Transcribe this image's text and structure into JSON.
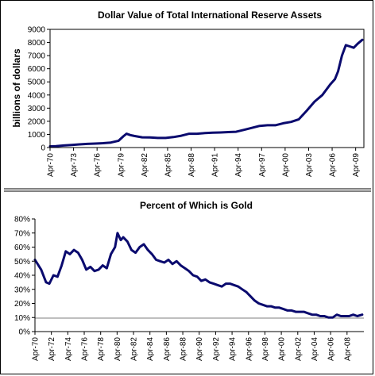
{
  "chart_data": [
    {
      "type": "line",
      "title": "Dollar Value of Total International Reserve Assets",
      "ylabel": "billions of dollars",
      "xlabel": "",
      "ylim": [
        0,
        9000
      ],
      "yticks": [
        0,
        1000,
        2000,
        3000,
        4000,
        5000,
        6000,
        7000,
        8000,
        9000
      ],
      "ytick_labels": [
        "0",
        "1000",
        "2000",
        "3000",
        "4000",
        "5000",
        "6000",
        "7000",
        "8000",
        "9000"
      ],
      "xlim": [
        1970.25,
        2010.3
      ],
      "xticks": [
        1970.25,
        1973.25,
        1976.25,
        1979.25,
        1982.25,
        1985.25,
        1988.25,
        1991.25,
        1994.25,
        1997.25,
        2000.25,
        2003.25,
        2006.25,
        2009.25
      ],
      "xtick_labels": [
        "Apr-70",
        "Apr-73",
        "Apr-76",
        "Apr-79",
        "Apr-82",
        "Apr-85",
        "Apr-88",
        "Apr-91",
        "Apr-94",
        "Apr-97",
        "Apr-00",
        "Apr-03",
        "Apr-06",
        "Apr-09"
      ],
      "grid": "none",
      "legend": "none",
      "series": [
        {
          "color": "#0a0a6e",
          "x": [
            1970.25,
            1971,
            1972,
            1973,
            1974,
            1975,
            1976,
            1977,
            1978,
            1979,
            1979.6,
            1980,
            1980.5,
            1981,
            1982,
            1983,
            1984,
            1985,
            1986,
            1987,
            1988,
            1989,
            1990,
            1991,
            1992,
            1993,
            1994,
            1995,
            1996,
            1997,
            1998,
            1999,
            2000,
            2001,
            2002,
            2003,
            2004,
            2005,
            2006,
            2006.6,
            2007,
            2007.5,
            2008,
            2008.5,
            2009,
            2009.5,
            2010.1
          ],
          "y": [
            90,
            110,
            160,
            200,
            240,
            280,
            300,
            330,
            380,
            520,
            850,
            1050,
            950,
            880,
            780,
            770,
            730,
            730,
            800,
            900,
            1050,
            1050,
            1100,
            1130,
            1150,
            1180,
            1200,
            1350,
            1500,
            1650,
            1700,
            1700,
            1850,
            1950,
            2150,
            2800,
            3500,
            4000,
            4800,
            5200,
            5800,
            7000,
            7800,
            7700,
            7600,
            7900,
            8200
          ]
        }
      ]
    },
    {
      "type": "line",
      "title": "Percent of Which is Gold",
      "xlabel": "",
      "ylabel": "",
      "ylim": [
        0,
        80
      ],
      "yticks": [
        0,
        10,
        20,
        30,
        40,
        50,
        60,
        70,
        80
      ],
      "ytick_labels": [
        "0%",
        "10%",
        "20%",
        "30%",
        "40%",
        "50%",
        "60%",
        "70%",
        "80%"
      ],
      "xlim": [
        1970.25,
        2010.3
      ],
      "xticks": [
        1970.25,
        1972.25,
        1974.25,
        1976.25,
        1978.25,
        1980.25,
        1982.25,
        1984.25,
        1986.25,
        1988.25,
        1990.25,
        1992.25,
        1994.25,
        1996.25,
        1998.25,
        2000.25,
        2002.25,
        2004.25,
        2006.25,
        2008.25
      ],
      "xtick_labels": [
        "Apr-70",
        "Apr-72",
        "Apr-74",
        "Apr-76",
        "Apr-78",
        "Apr-80",
        "Apr-82",
        "Apr-84",
        "Apr-86",
        "Apr-88",
        "Apr-90",
        "Apr-92",
        "Apr-94",
        "Apr-96",
        "Apr-98",
        "Apr-00",
        "Apr-02",
        "Apr-04",
        "Apr-06",
        "Apr-08"
      ],
      "grid": "none",
      "legend": "none",
      "series": [
        {
          "color": "#0a0a6e",
          "x": [
            1970.25,
            1971,
            1971.6,
            1972,
            1972.5,
            1973,
            1973.5,
            1974,
            1974.5,
            1975,
            1975.5,
            1976,
            1976.5,
            1977,
            1977.5,
            1978,
            1978.5,
            1979,
            1979.5,
            1980,
            1980.3,
            1980.7,
            1981,
            1981.5,
            1982,
            1982.5,
            1983,
            1983.5,
            1984,
            1984.5,
            1985,
            1985.5,
            1986,
            1986.5,
            1987,
            1987.5,
            1988,
            1988.5,
            1989,
            1989.5,
            1990,
            1990.5,
            1991,
            1991.5,
            1992,
            1992.5,
            1993,
            1993.5,
            1994,
            1994.5,
            1995,
            1995.5,
            1996,
            1996.5,
            1997,
            1997.5,
            1998,
            1998.5,
            1999,
            1999.5,
            2000,
            2000.5,
            2001,
            2001.5,
            2002,
            2002.5,
            2003,
            2003.5,
            2004,
            2004.5,
            2005,
            2005.5,
            2006,
            2006.5,
            2007,
            2007.5,
            2008,
            2008.5,
            2009,
            2009.5,
            2010.1
          ],
          "y": [
            51,
            44,
            35,
            34,
            40,
            39,
            47,
            57,
            55,
            58,
            56,
            51,
            44,
            46,
            43,
            44,
            47,
            45,
            55,
            60,
            70,
            65,
            67,
            64,
            58,
            56,
            60,
            62,
            58,
            55,
            51,
            50,
            49,
            51,
            48,
            50,
            47,
            45,
            43,
            40,
            39,
            36,
            37,
            35,
            34,
            33,
            32,
            34,
            34,
            33,
            32,
            30,
            28,
            25,
            22,
            20,
            19,
            18,
            18,
            17,
            17,
            16,
            15,
            15,
            14,
            14,
            14,
            13,
            12,
            12,
            11,
            11,
            10,
            10,
            12,
            11,
            11,
            11,
            12,
            11,
            12
          ]
        }
      ]
    }
  ]
}
